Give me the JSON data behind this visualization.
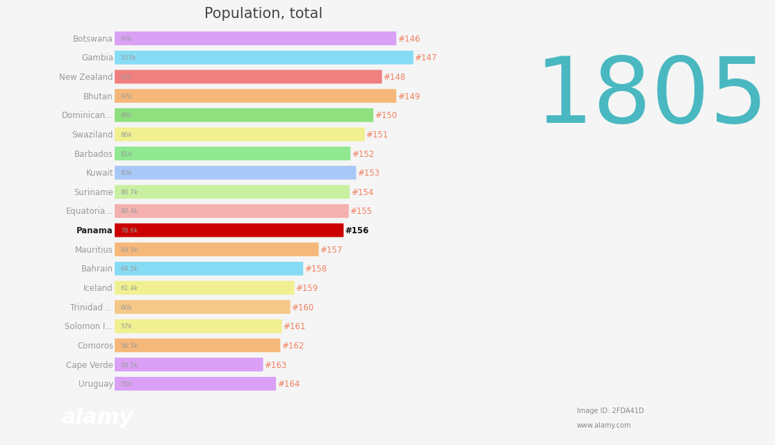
{
  "title": "Population, total",
  "big_number": "1805",
  "big_number_color": "#4ab8c1",
  "background_color": "#f5f5f5",
  "bottom_bar_color": "#111111",
  "categories": [
    "Botswana",
    "Gambia",
    "New Zealand",
    "Bhutan",
    "Dominican...",
    "Swaziland",
    "Barbados",
    "Kuwait",
    "Suriname",
    "Equatoria...",
    "Panama",
    "Mauritius",
    "Bahrain",
    "Iceland",
    "Trinidad ...",
    "Solomon I...",
    "Comoros",
    "Cape Verde",
    "Uruguay"
  ],
  "ranks": [
    "#146",
    "#147",
    "#148",
    "#149",
    "#150",
    "#151",
    "#152",
    "#153",
    "#154",
    "#155",
    "#156",
    "#157",
    "#158",
    "#159",
    "#160",
    "#161",
    "#162",
    "#163",
    "#164"
  ],
  "values": [
    97,
    103,
    92,
    97,
    89,
    86,
    81,
    83,
    80.7,
    80.4,
    78.6,
    69.9,
    64.5,
    61.4,
    60,
    57,
    56.5,
    50.5,
    55
  ],
  "value_labels": [
    "97k",
    "103k",
    "92k",
    "97k",
    "89k",
    "86k",
    "81k",
    "83k",
    "80.7k",
    "80.4k",
    "78.6k",
    "69.9k",
    "64.5k",
    "61.4k",
    "60k",
    "57k",
    "56.5k",
    "50.5k",
    "55k"
  ],
  "bar_colors": [
    "#d9a0f5",
    "#87dcf5",
    "#f08080",
    "#f5b87a",
    "#90e080",
    "#f0f090",
    "#90e890",
    "#a8c8f8",
    "#c8f0a0",
    "#f5b0b0",
    "#cc0000",
    "#f5b87a",
    "#87dcf5",
    "#f0f090",
    "#f5c888",
    "#f0f090",
    "#f5b87a",
    "#d9a0f5",
    "#d9a0f5"
  ],
  "highlight_index": 10,
  "rank_color_normal": "#f08060",
  "rank_color_highlight": "#111111",
  "title_fontsize": 15,
  "label_fontsize": 8.5,
  "value_label_fontsize": 6.5,
  "rank_fontsize": 8.5,
  "big_number_fontsize": 95
}
